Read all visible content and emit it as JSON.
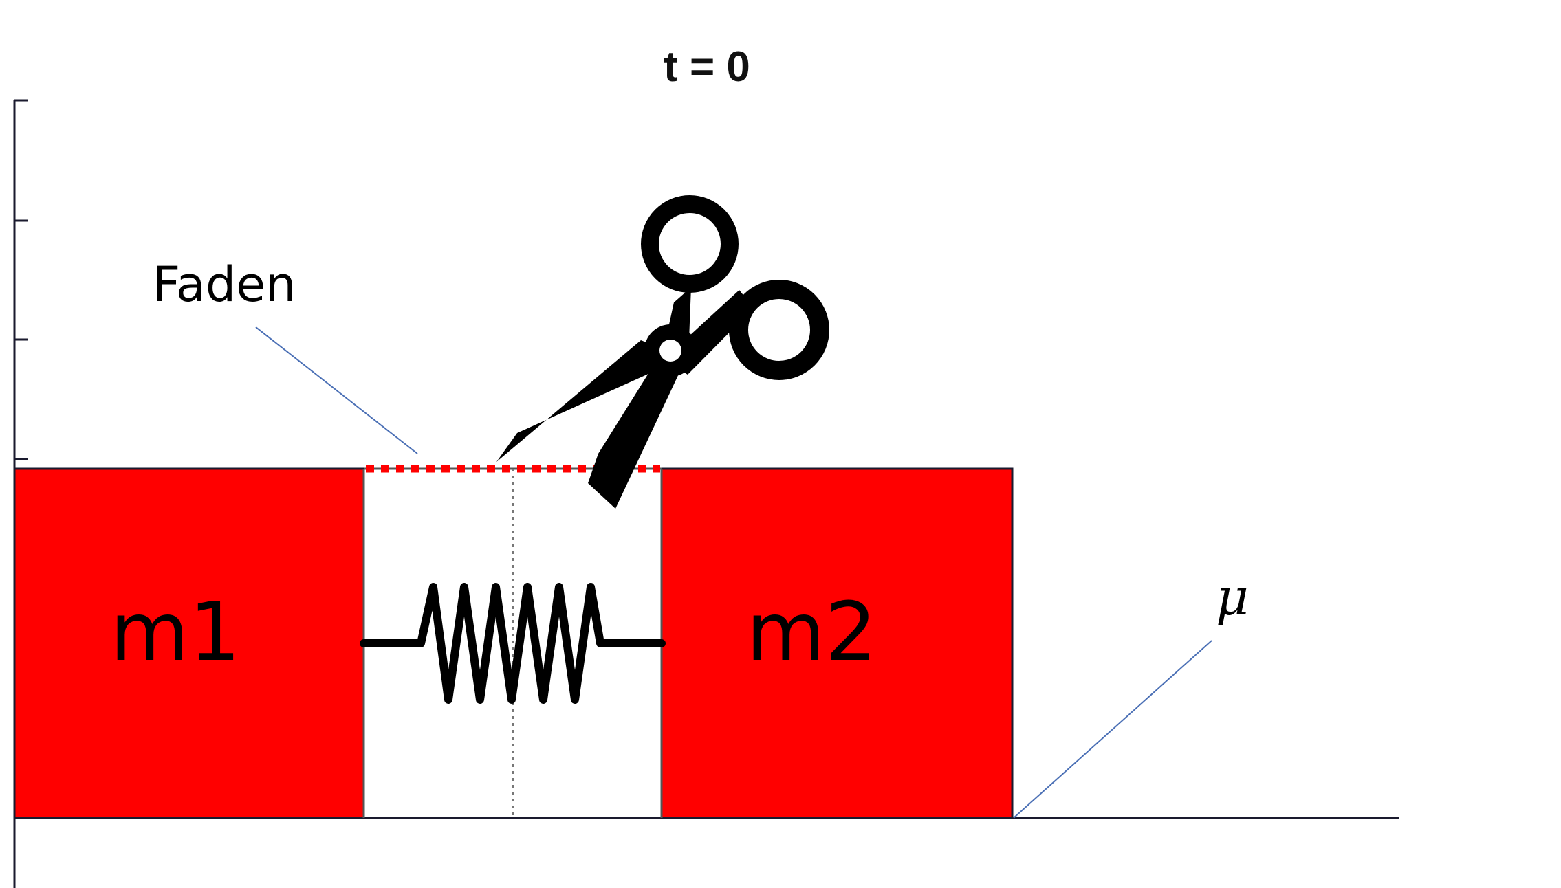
{
  "title": "t = 0",
  "thread_label": "Faden",
  "friction_label": "μ",
  "masses": [
    {
      "label": "m1"
    },
    {
      "label": "m2"
    }
  ],
  "icons": {
    "cut": "scissors-icon",
    "spring": "spring-icon"
  },
  "colors": {
    "mass_fill": "#ff0000",
    "thread": "#ff0000",
    "axis": "#1a1a2e",
    "leader": "#4a6fb5",
    "ink": "#000000"
  }
}
